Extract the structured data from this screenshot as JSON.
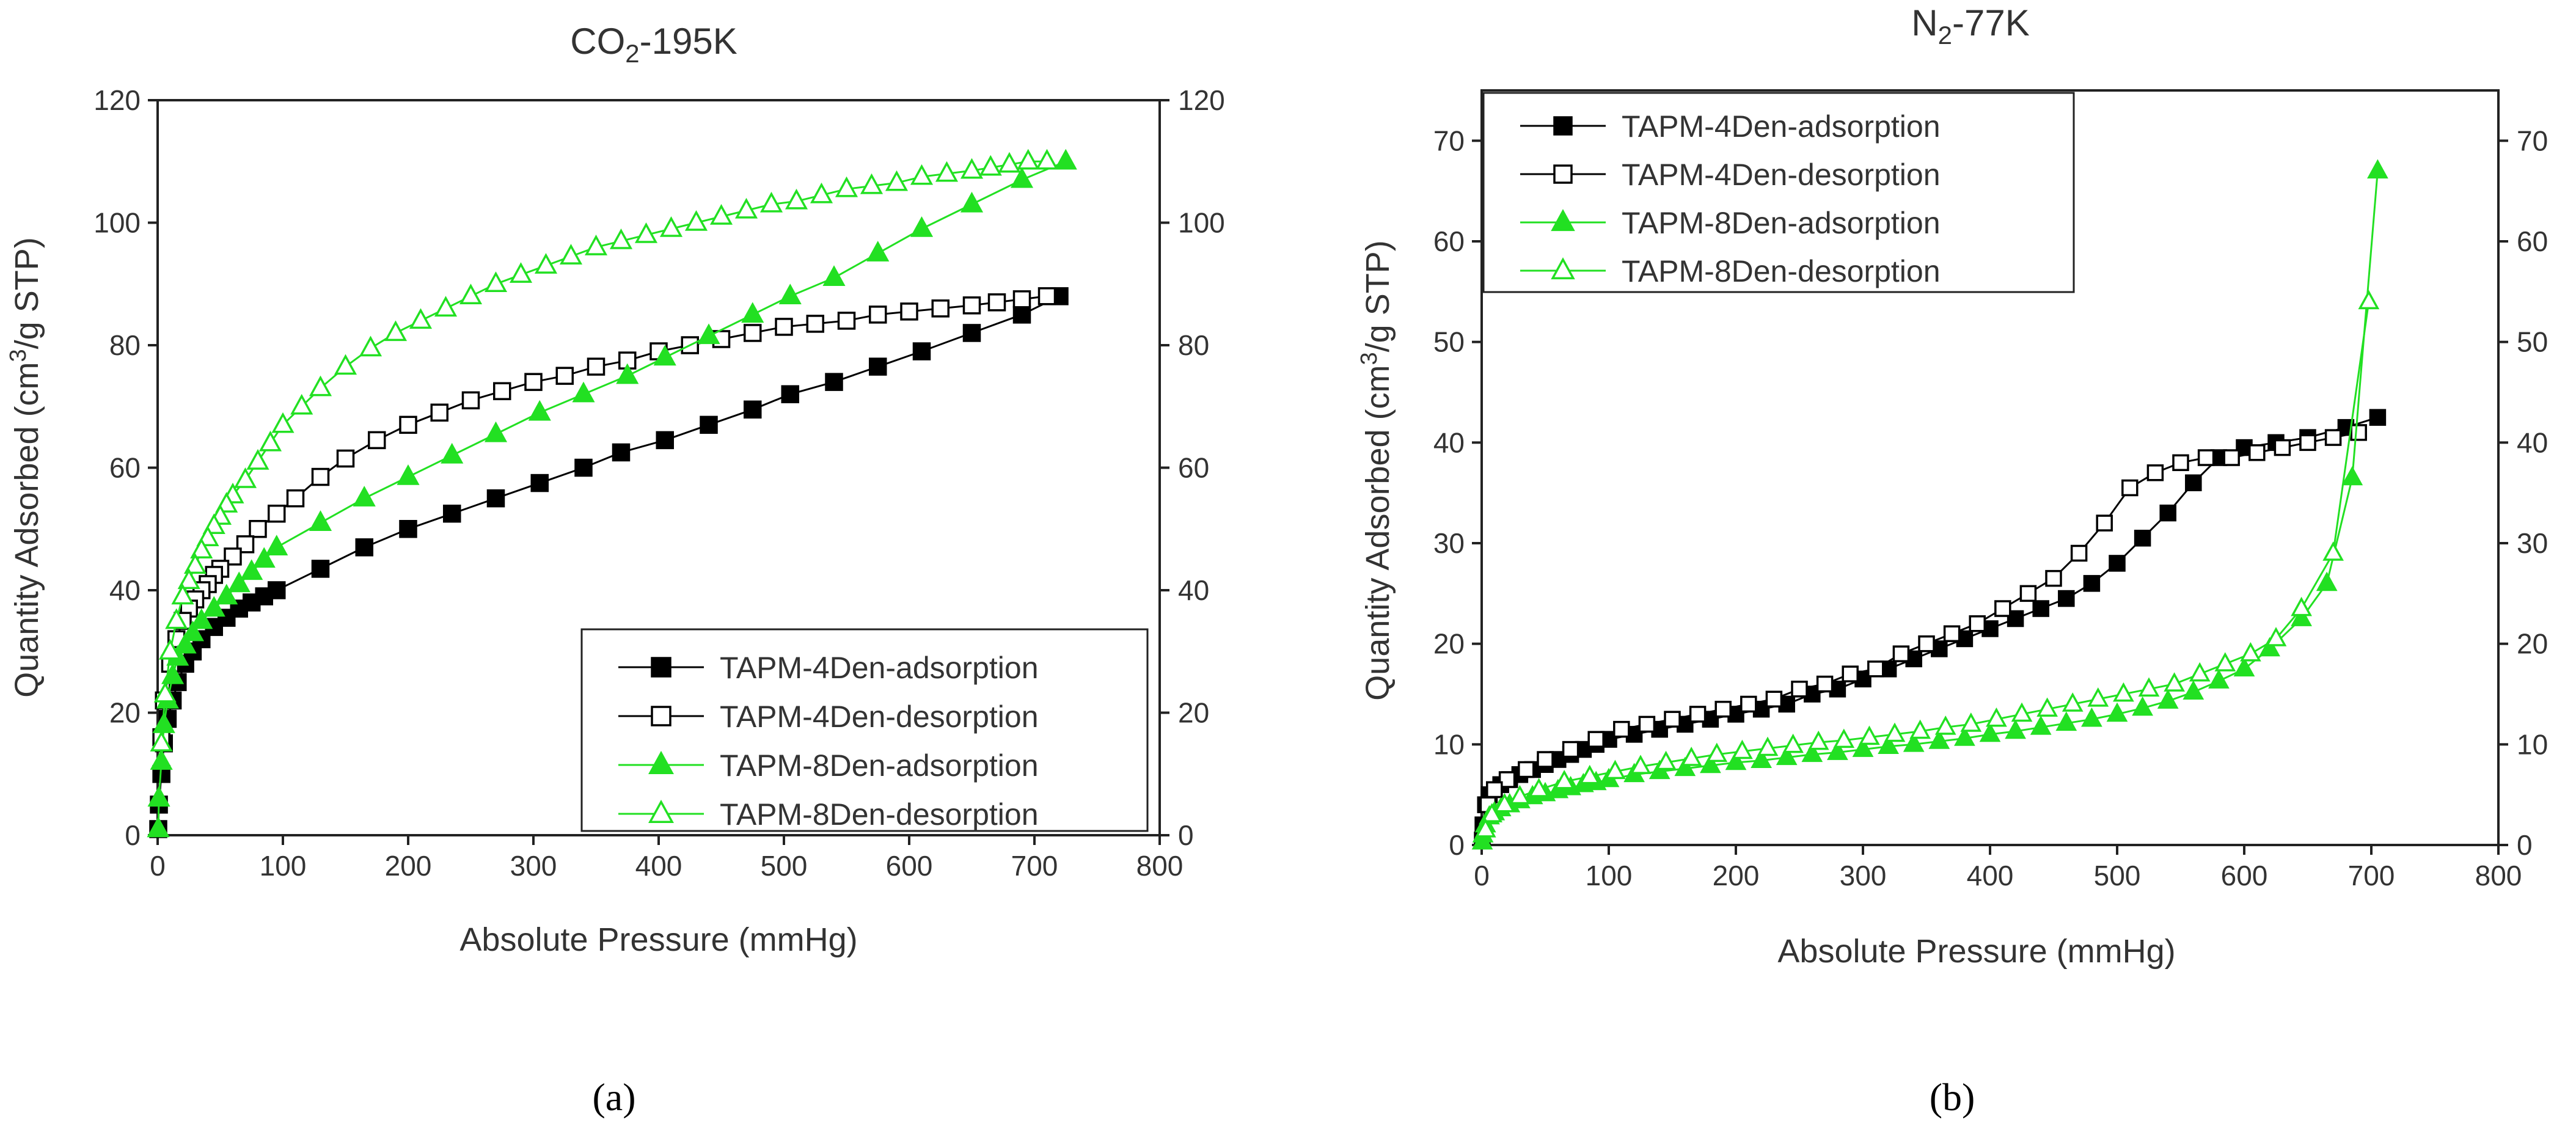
{
  "chart_data": [
    {
      "type": "line",
      "panel_label": "(a)",
      "title": "CO2-195K",
      "title_parts": {
        "base": "CO",
        "sub": "2",
        "rest": "-195K"
      },
      "xlabel": "Absolute Pressure (mmHg)",
      "ylabel_parts": {
        "pre": "Quantity Adsorbed (cm",
        "sup": "3",
        "post": "/g STP)"
      },
      "xlim": [
        0,
        800
      ],
      "ylim": [
        0,
        120
      ],
      "xticks": [
        0,
        100,
        200,
        300,
        400,
        500,
        600,
        700,
        800
      ],
      "yticks": [
        0,
        20,
        40,
        60,
        80,
        100,
        120
      ],
      "right_axis": true,
      "grid": false,
      "legend_position": "bottom-right",
      "series": [
        {
          "name": "TAPM-4Den-adsorption",
          "color": "#000000",
          "marker": "square",
          "filled": true,
          "x": [
            0.5,
            1,
            3,
            5,
            8,
            12,
            16,
            22,
            28,
            35,
            45,
            55,
            65,
            75,
            85,
            95,
            130,
            165,
            200,
            235,
            270,
            305,
            340,
            370,
            405,
            440,
            475,
            505,
            540,
            575,
            610,
            650,
            690,
            720
          ],
          "y": [
            1,
            5,
            10,
            15,
            19,
            22,
            25,
            28,
            30,
            32,
            34,
            35.5,
            37,
            38,
            39,
            40,
            43.5,
            47,
            50,
            52.5,
            55,
            57.5,
            60,
            62.5,
            64.5,
            67,
            69.5,
            72,
            74,
            76.5,
            79,
            82,
            85,
            88
          ]
        },
        {
          "name": "TAPM-4Den-desorption",
          "color": "#000000",
          "marker": "square",
          "filled": false,
          "x": [
            710,
            690,
            670,
            650,
            625,
            600,
            575,
            550,
            525,
            500,
            475,
            450,
            425,
            400,
            375,
            350,
            325,
            300,
            275,
            250,
            225,
            200,
            175,
            150,
            130,
            110,
            95,
            80,
            70,
            60,
            50,
            45,
            40,
            35,
            30,
            25,
            20,
            15,
            10,
            5,
            3
          ],
          "y": [
            88,
            87.5,
            87,
            86.5,
            86,
            85.5,
            85,
            84,
            83.5,
            83,
            82,
            81,
            80,
            79,
            77.5,
            76.5,
            75,
            74,
            72.5,
            71,
            69,
            67,
            64.5,
            61.5,
            58.5,
            55,
            52.5,
            50,
            47.5,
            45.5,
            43.5,
            42.5,
            41,
            40,
            38.5,
            37,
            35,
            32,
            28,
            22,
            16
          ]
        },
        {
          "name": "TAPM-8Den-adsorption",
          "color": "#22e022",
          "marker": "triangle",
          "filled": true,
          "x": [
            0.5,
            1,
            3,
            5,
            8,
            12,
            16,
            22,
            28,
            35,
            45,
            55,
            65,
            75,
            85,
            95,
            130,
            165,
            200,
            235,
            270,
            305,
            340,
            375,
            405,
            440,
            475,
            505,
            540,
            575,
            610,
            650,
            690,
            725
          ],
          "y": [
            1,
            6,
            12,
            18,
            22,
            26,
            29,
            31,
            33,
            35,
            37,
            39,
            41,
            43,
            45,
            47,
            51,
            55,
            58.5,
            62,
            65.5,
            69,
            72,
            75,
            78,
            81.5,
            85,
            88,
            91,
            95,
            99,
            103,
            107,
            110
          ]
        },
        {
          "name": "TAPM-8Den-desorption",
          "color": "#22e022",
          "marker": "triangle",
          "filled": false,
          "x": [
            710,
            695,
            680,
            665,
            650,
            630,
            610,
            590,
            570,
            550,
            530,
            510,
            490,
            470,
            450,
            430,
            410,
            390,
            370,
            350,
            330,
            310,
            290,
            270,
            250,
            230,
            210,
            190,
            170,
            150,
            130,
            115,
            100,
            90,
            80,
            70,
            60,
            55,
            50,
            45,
            40,
            35,
            30,
            25,
            20,
            15,
            10,
            6,
            3
          ],
          "y": [
            110,
            110,
            109.5,
            109,
            108.5,
            108,
            107.5,
            106.5,
            106,
            105.5,
            104.5,
            103.5,
            103,
            102,
            101,
            100,
            99,
            98,
            97,
            96,
            94.5,
            93,
            91.5,
            90,
            88,
            86,
            84,
            82,
            79.5,
            76.5,
            73,
            70,
            67,
            64,
            61,
            58,
            55.5,
            54,
            52,
            50.5,
            48.5,
            46.5,
            44,
            41.5,
            39,
            35,
            30,
            23,
            15
          ]
        }
      ]
    },
    {
      "type": "line",
      "panel_label": "(b)",
      "title": "N2-77K",
      "title_parts": {
        "base": "N",
        "sub": "2",
        "rest": "-77K"
      },
      "xlabel": "Absolute Pressure (mmHg)",
      "ylabel_parts": {
        "pre": "Quantity Adsorbed (cm",
        "sup": "3",
        "post": "/g STP)"
      },
      "xlim": [
        0,
        800
      ],
      "ylim": [
        0,
        75
      ],
      "xticks": [
        0,
        100,
        200,
        300,
        400,
        500,
        600,
        700,
        800
      ],
      "yticks": [
        0,
        10,
        20,
        30,
        40,
        50,
        60,
        70
      ],
      "right_axis": true,
      "grid": false,
      "legend_position": "top-left",
      "series": [
        {
          "name": "TAPM-4Den-adsorption",
          "color": "#000000",
          "marker": "square",
          "filled": true,
          "x": [
            0.5,
            1,
            3,
            6,
            10,
            15,
            22,
            30,
            40,
            50,
            60,
            70,
            80,
            90,
            100,
            120,
            140,
            160,
            180,
            200,
            220,
            240,
            260,
            280,
            300,
            320,
            340,
            360,
            380,
            400,
            420,
            440,
            460,
            480,
            500,
            520,
            540,
            560,
            580,
            600,
            625,
            650,
            680,
            705
          ],
          "y": [
            0.5,
            2,
            4,
            5,
            5.5,
            6,
            6.5,
            7,
            7.5,
            8,
            8.5,
            9,
            9.5,
            10,
            10.5,
            11,
            11.5,
            12,
            12.5,
            13,
            13.5,
            14,
            15,
            15.5,
            16.5,
            17.5,
            18.5,
            19.5,
            20.5,
            21.5,
            22.5,
            23.5,
            24.5,
            26,
            28,
            30.5,
            33,
            36,
            38.5,
            39.5,
            40,
            40.5,
            41.5,
            42.5
          ]
        },
        {
          "name": "TAPM-4Den-desorption",
          "color": "#000000",
          "marker": "square",
          "filled": false,
          "x": [
            690,
            670,
            650,
            630,
            610,
            590,
            570,
            550,
            530,
            510,
            490,
            470,
            450,
            430,
            410,
            390,
            370,
            350,
            330,
            310,
            290,
            270,
            250,
            230,
            210,
            190,
            170,
            150,
            130,
            110,
            90,
            70,
            50,
            35,
            20,
            10,
            5
          ],
          "y": [
            41,
            40.5,
            40,
            39.5,
            39,
            38.5,
            38.5,
            38,
            37,
            35.5,
            32,
            29,
            26.5,
            25,
            23.5,
            22,
            21,
            20,
            19,
            17.5,
            17,
            16,
            15.5,
            14.5,
            14,
            13.5,
            13,
            12.5,
            12,
            11.5,
            10.5,
            9.5,
            8.5,
            7.5,
            6.5,
            5.5,
            4
          ]
        },
        {
          "name": "TAPM-8Den-adsorption",
          "color": "#22e022",
          "marker": "triangle",
          "filled": true,
          "x": [
            0.5,
            1,
            3,
            6,
            10,
            15,
            22,
            30,
            40,
            50,
            60,
            70,
            80,
            90,
            100,
            120,
            140,
            160,
            180,
            200,
            220,
            240,
            260,
            280,
            300,
            320,
            340,
            360,
            380,
            400,
            420,
            440,
            460,
            480,
            500,
            520,
            540,
            560,
            580,
            600,
            620,
            645,
            665,
            685,
            705
          ],
          "y": [
            0.3,
            1,
            2,
            2.8,
            3.2,
            3.6,
            4,
            4.4,
            4.8,
            5.1,
            5.4,
            5.7,
            6,
            6.2,
            6.5,
            7,
            7.3,
            7.6,
            7.9,
            8.2,
            8.4,
            8.7,
            9,
            9.2,
            9.5,
            9.8,
            10,
            10.3,
            10.6,
            11,
            11.3,
            11.7,
            12.1,
            12.5,
            13,
            13.6,
            14.3,
            15.2,
            16.3,
            17.5,
            19.5,
            22.5,
            26,
            36.5,
            67
          ]
        },
        {
          "name": "TAPM-8Den-desorption",
          "color": "#22e022",
          "marker": "triangle",
          "filled": false,
          "x": [
            698,
            670,
            645,
            625,
            605,
            585,
            565,
            545,
            525,
            505,
            485,
            465,
            445,
            425,
            405,
            385,
            365,
            345,
            325,
            305,
            285,
            265,
            245,
            225,
            205,
            185,
            165,
            145,
            125,
            105,
            85,
            65,
            45,
            30,
            18,
            8,
            3
          ],
          "y": [
            54,
            29,
            23.5,
            20.5,
            19,
            18,
            17,
            16,
            15.5,
            15,
            14.5,
            14,
            13.5,
            13,
            12.5,
            12,
            11.7,
            11.3,
            11,
            10.7,
            10.4,
            10.2,
            9.9,
            9.6,
            9.3,
            9,
            8.6,
            8.2,
            7.8,
            7.3,
            6.8,
            6.3,
            5.5,
            4.8,
            4,
            3,
            1.5
          ]
        }
      ]
    }
  ]
}
